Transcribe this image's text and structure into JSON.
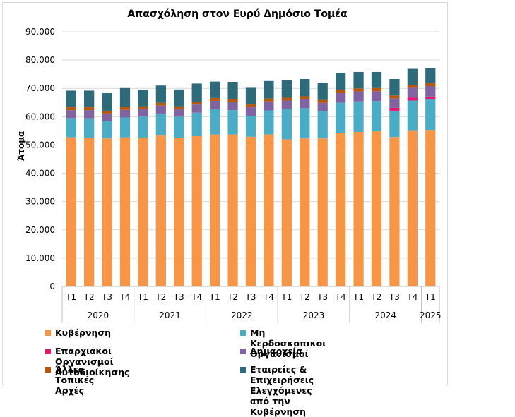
{
  "chart_data": {
    "type": "bar",
    "stacked": true,
    "title": "Απασχόληση στον Ευρύ Δημόσιο Τομέα",
    "ylabel": "Άτομα",
    "xlabel": "",
    "ylim": [
      0,
      90000
    ],
    "yticks": [
      0,
      10000,
      20000,
      30000,
      40000,
      50000,
      60000,
      70000,
      80000,
      90000
    ],
    "ytick_labels": [
      "0",
      "10.000",
      "20.000",
      "30.000",
      "40.000",
      "50.000",
      "60.000",
      "70.000",
      "80.000",
      "90.000"
    ],
    "grid": true,
    "legend_position": "bottom",
    "categories": [
      "Τ1",
      "Τ2",
      "Τ3",
      "Τ4",
      "Τ1",
      "Τ2",
      "Τ3",
      "Τ4",
      "Τ1",
      "Τ2",
      "Τ3",
      "Τ4",
      "Τ1",
      "Τ2",
      "Τ3",
      "Τ4",
      "Τ1",
      "Τ2",
      "Τ3",
      "Τ4",
      "Τ1"
    ],
    "year_groups": [
      {
        "label": "2020",
        "count": 4
      },
      {
        "label": "2021",
        "count": 4
      },
      {
        "label": "2022",
        "count": 4
      },
      {
        "label": "2023",
        "count": 4
      },
      {
        "label": "2024",
        "count": 4
      },
      {
        "label": "2025",
        "count": 1
      }
    ],
    "series": [
      {
        "name": "Κυβέρνηση",
        "color": "#F79646",
        "values": [
          52700,
          52400,
          52300,
          52700,
          52600,
          53300,
          52600,
          53100,
          53700,
          53700,
          52900,
          53700,
          52000,
          52300,
          52300,
          54100,
          54600,
          54800,
          52800,
          55200,
          55300
        ]
      },
      {
        "name": "Μη Κερδοσκοπικοί Οργανισμοί",
        "color": "#4BACC6",
        "values": [
          6800,
          7000,
          6200,
          7000,
          7400,
          7800,
          7400,
          8300,
          8900,
          8600,
          7400,
          8500,
          10600,
          10700,
          9600,
          10800,
          10800,
          10700,
          9300,
          10500,
          10800
        ]
      },
      {
        "name": "Επαρχιακοί Οργανισμοί Αυτοδιοίκησης",
        "color": "#E8146E",
        "values": [
          0,
          0,
          0,
          0,
          0,
          0,
          0,
          0,
          0,
          0,
          0,
          0,
          0,
          0,
          0,
          0,
          0,
          0,
          1000,
          1000,
          1000
        ]
      },
      {
        "name": "Δημαρχεία",
        "color": "#8064A2",
        "values": [
          2800,
          2900,
          2600,
          2700,
          2600,
          2800,
          2600,
          2900,
          3000,
          3000,
          3000,
          3200,
          3100,
          3200,
          3000,
          3400,
          3500,
          3500,
          3300,
          3500,
          3700
        ]
      },
      {
        "name": "Άλλες Τοπικές Αρχές",
        "color": "#B85709",
        "values": [
          1000,
          1000,
          1000,
          1000,
          1000,
          1000,
          1000,
          1000,
          1000,
          1000,
          1000,
          1000,
          1000,
          1000,
          1000,
          1100,
          1100,
          1100,
          1100,
          1100,
          1100
        ]
      },
      {
        "name": "Εταιρείες & Επιχειρήσεις Ελεγχόμενες από την Κυβέρνηση",
        "color": "#2D6A7A",
        "values": [
          5900,
          5900,
          6200,
          6700,
          5900,
          6100,
          6000,
          6400,
          5800,
          6000,
          5900,
          6200,
          6100,
          6100,
          6100,
          6000,
          5800,
          5700,
          5800,
          5600,
          5300
        ]
      }
    ]
  },
  "legend": {
    "items": [
      {
        "label": "Κυβέρνηση",
        "color": "#F79646"
      },
      {
        "label": "Μη Κερδοσκοπικοι Οργανισμοί",
        "color": "#4BACC6"
      },
      {
        "label": "Επαρχιακοι Οργανισμοί Αυτοδιοίκησης",
        "color": "#E8146E"
      },
      {
        "label": "Δημαρχεία",
        "color": "#8064A2"
      },
      {
        "label": "Άλλες Τοπικές Αρχές",
        "color": "#B85709"
      },
      {
        "label": "Εταιρείες & Επιχειρήσεις\nΕλεγχόμενες από την Κυβέρνηση",
        "color": "#2D6A7A"
      }
    ]
  }
}
